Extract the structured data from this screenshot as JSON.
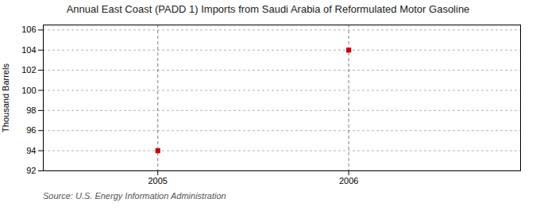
{
  "chart_data": {
    "type": "scatter",
    "title": "Annual East Coast (PADD 1) Imports from Saudi Arabia of Reformulated Motor Gasoline",
    "y_label": "Thousand Barrels",
    "annotations": [
      "Source: U.S. Energy Information Administration"
    ],
    "x": [
      2005,
      2006
    ],
    "values": [
      94,
      104
    ],
    "color": "#cc0000",
    "marker": "square",
    "vlines": [
      2005,
      2006
    ],
    "xlim": [
      2004.4,
      2006.9
    ],
    "ylim": [
      92,
      106.5
    ],
    "xticks": [
      2005,
      2006
    ],
    "yticks": [
      92,
      94,
      96,
      98,
      100,
      102,
      104,
      106
    ],
    "grid": "y"
  }
}
